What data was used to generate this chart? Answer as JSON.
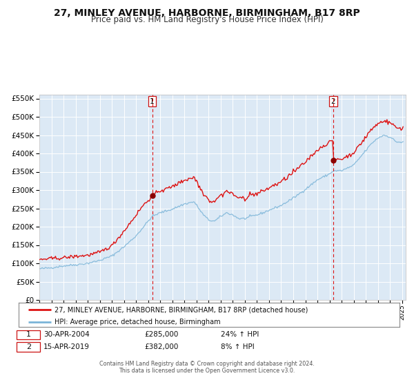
{
  "title": "27, MINLEY AVENUE, HARBORNE, BIRMINGHAM, B17 8RP",
  "subtitle": "Price paid vs. HM Land Registry's House Price Index (HPI)",
  "legend_line1": "27, MINLEY AVENUE, HARBORNE, BIRMINGHAM, B17 8RP (detached house)",
  "legend_line2": "HPI: Average price, detached house, Birmingham",
  "annotation1_date": "30-APR-2004",
  "annotation1_price": "£285,000",
  "annotation1_hpi": "24% ↑ HPI",
  "annotation1_year": 2004.33,
  "annotation1_value": 285000,
  "annotation2_date": "15-APR-2019",
  "annotation2_price": "£382,000",
  "annotation2_hpi": "8% ↑ HPI",
  "annotation2_year": 2019.29,
  "annotation2_value": 382000,
  "footer_line1": "Contains HM Land Registry data © Crown copyright and database right 2024.",
  "footer_line2": "This data is licensed under the Open Government Licence v3.0.",
  "ylim": [
    0,
    560000
  ],
  "xlim_start": 1995.0,
  "xlim_end": 2025.3,
  "plot_bg_color": "#dce9f5",
  "grid_color": "#ffffff",
  "hpi_line_color": "#7ab4d8",
  "price_line_color": "#dd1111",
  "dot_color": "#8b0000",
  "vline_color": "#dd1111",
  "title_fontsize": 10,
  "subtitle_fontsize": 8.5
}
